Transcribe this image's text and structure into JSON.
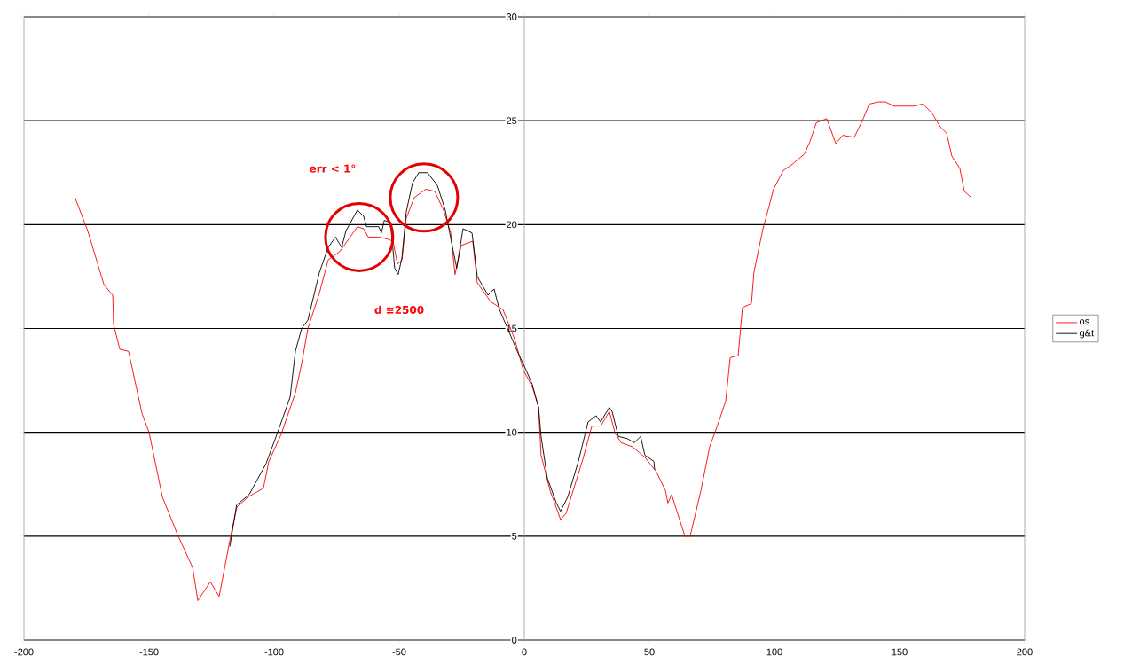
{
  "chart_data": {
    "type": "line",
    "xlim": [
      -200,
      200
    ],
    "xticks": [
      -200,
      -150,
      -100,
      -50,
      0,
      50,
      100,
      150,
      200
    ],
    "ylim": [
      0,
      30
    ],
    "yticks": [
      0,
      5,
      10,
      15,
      20,
      25,
      30
    ],
    "grid": "y",
    "legend": "right",
    "marker": "none",
    "line_style": "solid",
    "annotations": [
      "err < 1°",
      "d ≅2500"
    ],
    "series": [
      {
        "name": "os",
        "color": "#ff0000",
        "x": [
          -179.6,
          -174.5,
          -168,
          -164.5,
          -164.2,
          -161.7,
          -158.2,
          -152.8,
          -150,
          -144.7,
          -138.7,
          -132.6,
          -130.5,
          -125.5,
          -122,
          -119.9,
          -117.4,
          -114.9,
          -110.3,
          -104.3,
          -102.1,
          -97.2,
          -91.5,
          -89,
          -86.5,
          -81.9,
          -78.4,
          -73.8,
          -70.2,
          -66.7,
          -64.2,
          -62.4,
          -58.2,
          -54.6,
          -52.5,
          -50.7,
          -48.9,
          -47.2,
          -44,
          -39.4,
          -35.8,
          -32.3,
          -29.4,
          -27.7,
          -25.2,
          -20.6,
          -18.8,
          -13.5,
          -8.5,
          -3.9,
          -0.4,
          3.2,
          5.7,
          6.7,
          10.3,
          14.5,
          16.7,
          23.4,
          27,
          30.5,
          34,
          36.2,
          38.7,
          43.3,
          48.2,
          52.8,
          56.4,
          57.4,
          58.9,
          61,
          64.2,
          66.3,
          70.6,
          74.1,
          77.7,
          80.5,
          82.3,
          85.5,
          87.2,
          90.8,
          91.8,
          95.4,
          97.9,
          99.6,
          103.5,
          107.1,
          112,
          114.2,
          116.7,
          120.9,
          124.5,
          127.3,
          131.9,
          135.5,
          137.9,
          141.5,
          144.3,
          147.9,
          155.7,
          159.2,
          162.8,
          166.3,
          168.8,
          170.9,
          174.1,
          175.9,
          178.7
        ],
        "values": [
          21.3,
          19.7,
          17.1,
          16.6,
          15.2,
          14.0,
          13.9,
          10.9,
          10.0,
          6.9,
          5.1,
          3.5,
          1.9,
          2.8,
          2.1,
          3.4,
          5.0,
          6.4,
          6.9,
          7.3,
          8.6,
          9.9,
          11.9,
          13.3,
          15.0,
          16.7,
          18.3,
          18.7,
          19.3,
          19.9,
          19.8,
          19.4,
          19.4,
          19.3,
          19.2,
          18.1,
          18.3,
          20.3,
          21.3,
          21.7,
          21.6,
          20.7,
          19.6,
          17.6,
          19.0,
          19.2,
          17.2,
          16.3,
          15.9,
          14.5,
          13.0,
          12.2,
          11.2,
          8.9,
          7.2,
          5.8,
          6.1,
          8.7,
          10.3,
          10.3,
          11.0,
          10.0,
          9.5,
          9.3,
          8.8,
          8.1,
          7.2,
          6.6,
          7.0,
          6.2,
          5.0,
          5.0,
          7.2,
          9.3,
          10.5,
          11.5,
          13.6,
          13.7,
          16.0,
          16.2,
          17.7,
          19.8,
          20.9,
          21.7,
          22.6,
          22.9,
          23.4,
          24.0,
          24.9,
          25.1,
          23.9,
          24.3,
          24.2,
          25.1,
          25.8,
          25.9,
          25.9,
          25.7,
          25.7,
          25.8,
          25.4,
          24.7,
          24.4,
          23.3,
          22.7,
          21.6,
          21.3
        ]
      },
      {
        "name": "g&t",
        "color": "#000000",
        "x": [
          -117.7,
          -115,
          -110,
          -103.2,
          -98.6,
          -93.6,
          -91.5,
          -89,
          -86.5,
          -81.9,
          -78.4,
          -75.5,
          -73,
          -71.3,
          -66.7,
          -64.2,
          -63.1,
          -58.2,
          -57.1,
          -56,
          -53.5,
          -51.8,
          -50.4,
          -48.9,
          -47.2,
          -44.7,
          -42.2,
          -38.7,
          -34.8,
          -31.6,
          -28.7,
          -27,
          -24.5,
          -20.9,
          -18.8,
          -14.5,
          -12.1,
          -9.9,
          -7.4,
          -2.8,
          0.7,
          3.2,
          5.7,
          6.7,
          9.2,
          12.8,
          14.5,
          17.4,
          21.6,
          25.5,
          28.7,
          30.5,
          34,
          35.1,
          37.6,
          41.1,
          44,
          46.5,
          48.2,
          51.8,
          52.1
        ],
        "values": [
          4.5,
          6.5,
          7.0,
          8.5,
          10.0,
          11.7,
          13.9,
          15.0,
          15.4,
          17.7,
          18.9,
          19.4,
          18.9,
          19.7,
          20.7,
          20.4,
          19.9,
          19.9,
          19.6,
          20.2,
          20.1,
          17.9,
          17.6,
          18.4,
          20.6,
          22.0,
          22.5,
          22.5,
          21.9,
          20.7,
          18.9,
          17.9,
          19.8,
          19.6,
          17.5,
          16.6,
          16.9,
          15.9,
          15.2,
          13.9,
          13.0,
          12.3,
          11.2,
          9.8,
          7.8,
          6.6,
          6.2,
          6.9,
          8.6,
          10.5,
          10.8,
          10.5,
          11.2,
          11.0,
          9.8,
          9.7,
          9.5,
          9.8,
          8.9,
          8.6,
          8.2
        ]
      }
    ]
  }
}
